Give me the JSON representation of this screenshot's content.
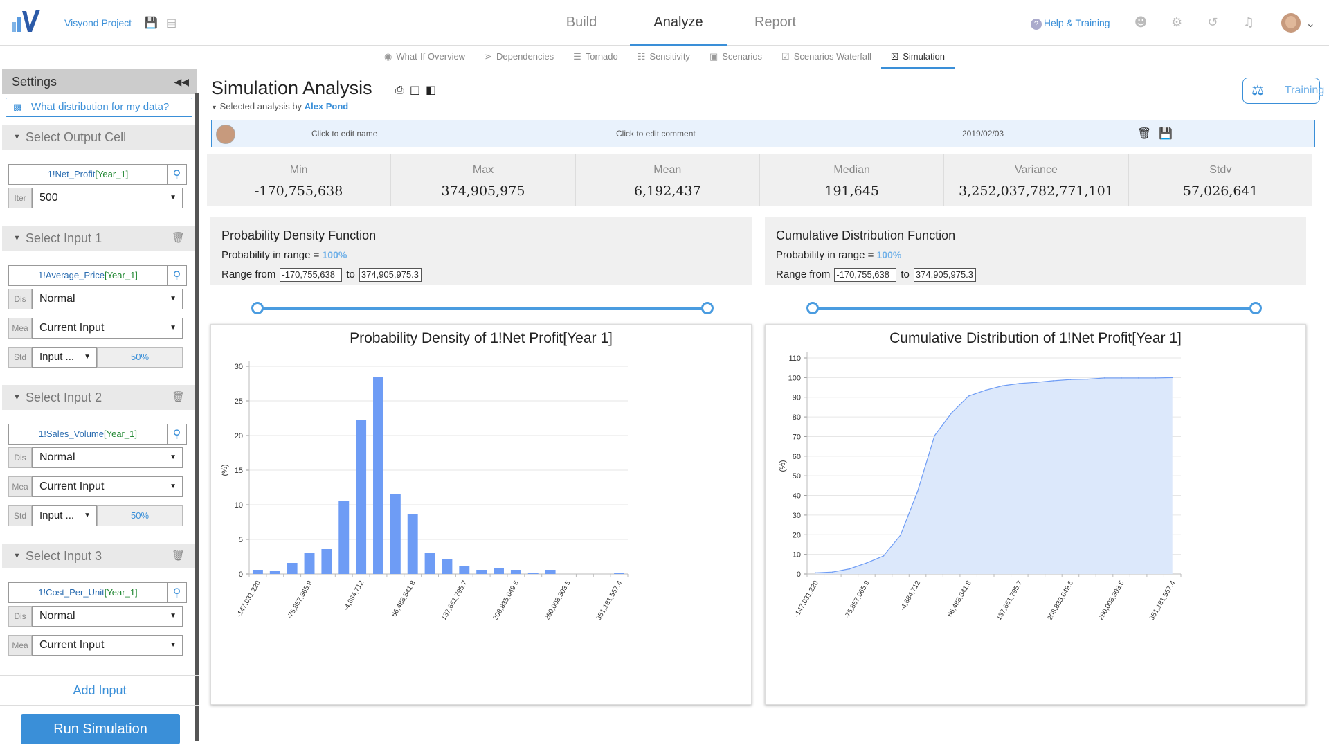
{
  "header": {
    "project_name": "Visyond Project",
    "tabs": [
      "Build",
      "Analyze",
      "Report"
    ],
    "active_tab": "Analyze",
    "help_label": "Help & Training"
  },
  "subnav": {
    "items": [
      "What-If Overview",
      "Dependencies",
      "Tornado",
      "Sensitivity",
      "Scenarios",
      "Scenarios Waterfall",
      "Simulation"
    ],
    "active": "Simulation"
  },
  "sidebar": {
    "title": "Settings",
    "dist_button": "What distribution for my data?",
    "output": {
      "section_label": "Select Output Cell",
      "cell_prefix": "1!",
      "cell_name": "Net_Profit",
      "cell_index": "[Year_1]",
      "iter_label": "Iter",
      "iter_value": "500"
    },
    "inputs": [
      {
        "section_label": "Select Input 1",
        "cell_prefix": "1!",
        "cell_name": "Average_Price",
        "cell_index": "[Year_1]",
        "dis_label": "Dis",
        "dis_value": "Normal",
        "mea_label": "Mea",
        "mea_value": "Current Input",
        "std_label": "Std",
        "std_value": "Input ...",
        "std_pct": "50%"
      },
      {
        "section_label": "Select Input 2",
        "cell_prefix": "1!",
        "cell_name": "Sales_Volume",
        "cell_index": "[Year_1]",
        "dis_label": "Dis",
        "dis_value": "Normal",
        "mea_label": "Mea",
        "mea_value": "Current Input",
        "std_label": "Std",
        "std_value": "Input ...",
        "std_pct": "50%"
      },
      {
        "section_label": "Select Input 3",
        "cell_prefix": "1!",
        "cell_name": "Cost_Per_Unit",
        "cell_index": "[Year_1]",
        "dis_label": "Dis",
        "dis_value": "Normal",
        "mea_label": "Mea",
        "mea_value": "Current Input"
      }
    ],
    "add_input": "Add Input",
    "run": "Run Simulation"
  },
  "main": {
    "title": "Simulation Analysis",
    "selected_by_prefix": "Selected analysis by",
    "selected_by_user": "Alex Pond",
    "training_label": "Training",
    "info": {
      "name": "Click to edit name",
      "comment": "Click to edit comment",
      "date": "2019/02/03"
    },
    "stats": [
      {
        "label": "Min",
        "value": "-170,755,638"
      },
      {
        "label": "Max",
        "value": "374,905,975"
      },
      {
        "label": "Mean",
        "value": "6,192,437"
      },
      {
        "label": "Median",
        "value": "191,645"
      },
      {
        "label": "Variance",
        "value": "3,252,037,782,771,101"
      },
      {
        "label": "Stdv",
        "value": "57,026,641"
      }
    ],
    "pdf_panel": {
      "title": "Probability Density Function",
      "prob_label": "Probability in range =",
      "prob_value": "100%",
      "range_label": "Range from",
      "to_label": "to",
      "from_value": "-170,755,638",
      "to_value": "374,905,975.3"
    },
    "cdf_panel": {
      "title": "Cumulative Distribution Function",
      "prob_label": "Probability in range =",
      "prob_value": "100%",
      "range_label": "Range from",
      "to_label": "to",
      "from_value": "-170,755,638",
      "to_value": "374,905,975.3"
    }
  },
  "chart_data": [
    {
      "type": "bar",
      "title": "Probability Density of 1!Net Profit[Year 1]",
      "ylabel": "(%)",
      "ylim": [
        0,
        30
      ],
      "yticks": [
        0,
        5,
        10,
        15,
        20,
        25,
        30
      ],
      "xtick_labels": [
        "-147,031,220",
        "-75,857,965.9",
        "-4,684,712",
        "66,488,541.8",
        "137,661,795.7",
        "208,835,049.6",
        "280,008,303.5",
        "351,181,557.4"
      ],
      "values": [
        0.6,
        0.4,
        1.6,
        3.0,
        3.6,
        10.6,
        22.2,
        28.4,
        11.6,
        8.6,
        3.0,
        2.2,
        1.2,
        0.6,
        0.8,
        0.6,
        0.2,
        0.6,
        0,
        0,
        0,
        0.2
      ],
      "color": "#6e9cf5"
    },
    {
      "type": "area",
      "title": "Cumulative Distribution of 1!Net Profit[Year 1]",
      "ylabel": "(%)",
      "ylim": [
        0,
        110
      ],
      "yticks": [
        0,
        10,
        20,
        30,
        40,
        50,
        60,
        70,
        80,
        90,
        100,
        110
      ],
      "xtick_labels": [
        "-147,031,220",
        "-75,857,965.9",
        "-4,684,712",
        "66,488,541.8",
        "137,661,795.7",
        "208,835,049.6",
        "280,008,303.5",
        "351,181,557.4"
      ],
      "values": [
        0.6,
        1.0,
        2.6,
        5.6,
        9.2,
        19.8,
        42.0,
        70.4,
        82.0,
        90.6,
        93.6,
        95.8,
        97.0,
        97.6,
        98.4,
        99.0,
        99.2,
        99.8,
        99.8,
        99.8,
        99.8,
        100
      ],
      "color": "#6e9cf5",
      "fill": "#dce8fb"
    }
  ]
}
